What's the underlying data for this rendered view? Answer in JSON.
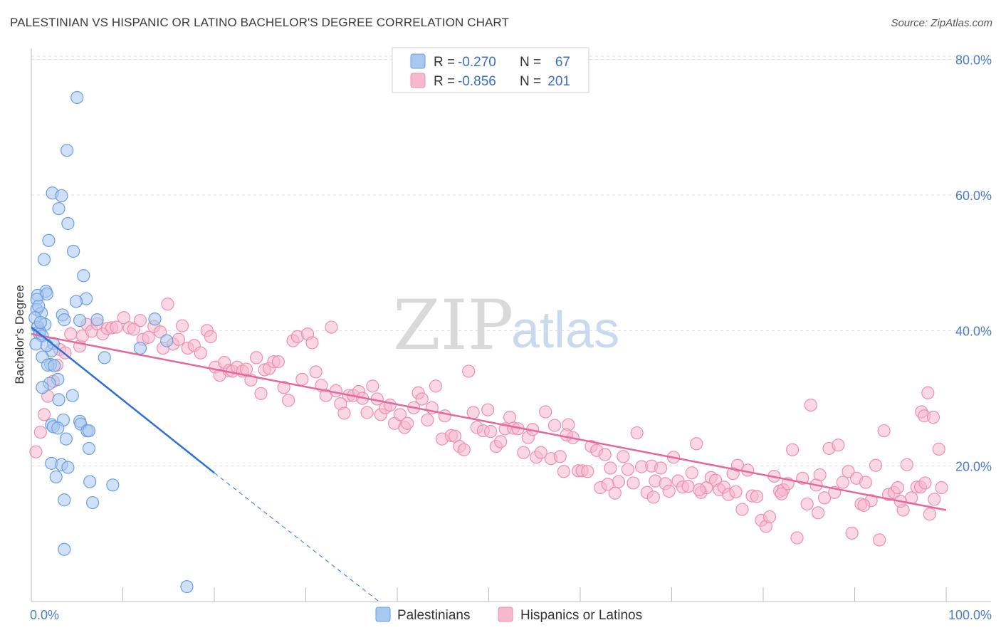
{
  "title": "PALESTINIAN VS HISPANIC OR LATINO BACHELOR'S DEGREE CORRELATION CHART",
  "source": "Source: ZipAtlas.com",
  "watermark": {
    "zip": "ZIP",
    "atlas": "atlas"
  },
  "colors": {
    "blue_fill": "#a9c8f0",
    "blue_stroke": "#6a9ee0",
    "blue_line": "#2d6fd6",
    "pink_fill": "#f5b8cc",
    "pink_stroke": "#ec8fae",
    "pink_line": "#e4689a",
    "grid": "#dddddd",
    "axis_label": "#4a7cc7"
  },
  "legend": {
    "rows": [
      {
        "r_label": "R =",
        "r_value": "-0.270",
        "n_label": "N =",
        "n_value": "67"
      },
      {
        "r_label": "R =",
        "r_value": "-0.856",
        "n_label": "N =",
        "n_value": "201"
      }
    ]
  },
  "bottom_legend": [
    "Palestinians",
    "Hispanics or Latinos"
  ],
  "chart_data": {
    "type": "scatter",
    "title": "PALESTINIAN VS HISPANIC OR LATINO BACHELOR'S DEGREE CORRELATION CHART",
    "xlabel": "",
    "ylabel": "Bachelor's Degree",
    "xlim": [
      0,
      100
    ],
    "ylim": [
      0,
      83
    ],
    "x_tick_labels": [
      "0.0%",
      "100.0%"
    ],
    "y_ticks": [
      20,
      40,
      60,
      80
    ],
    "y_tick_labels": [
      "20.0%",
      "40.0%",
      "60.0%",
      "80.0%"
    ],
    "grid": true,
    "legend_position": "top-center",
    "series": [
      {
        "name": "Palestinians",
        "r": -0.27,
        "n": 67,
        "trend": {
          "x0": 0,
          "y0": 40.5,
          "x1": 20,
          "y1": 19.0,
          "dash_to_x": 38,
          "dash_to_y": 0
        },
        "points": [
          [
            5.0,
            74.4
          ],
          [
            3.9,
            66.6
          ],
          [
            2.3,
            60.3
          ],
          [
            3.3,
            59.9
          ],
          [
            3.0,
            58.0
          ],
          [
            4.0,
            55.8
          ],
          [
            1.9,
            53.3
          ],
          [
            4.6,
            51.7
          ],
          [
            1.4,
            50.5
          ],
          [
            5.7,
            48.1
          ],
          [
            1.6,
            45.8
          ],
          [
            0.7,
            45.2
          ],
          [
            1.7,
            45.4
          ],
          [
            6.0,
            44.7
          ],
          [
            0.6,
            44.6
          ],
          [
            4.9,
            44.3
          ],
          [
            0.6,
            43.1
          ],
          [
            1.1,
            42.6
          ],
          [
            3.4,
            42.3
          ],
          [
            0.4,
            41.9
          ],
          [
            7.2,
            41.6
          ],
          [
            13.5,
            41.7
          ],
          [
            3.6,
            41.6
          ],
          [
            5.3,
            41.5
          ],
          [
            1.5,
            40.9
          ],
          [
            0.7,
            40.5
          ],
          [
            0.9,
            39.9
          ],
          [
            0.9,
            39.5
          ],
          [
            1.2,
            39.2
          ],
          [
            14.8,
            38.5
          ],
          [
            2.4,
            38.1
          ],
          [
            0.5,
            38.0
          ],
          [
            2.2,
            37.0
          ],
          [
            1.7,
            37.8
          ],
          [
            11.9,
            37.4
          ],
          [
            8.0,
            36.0
          ],
          [
            1.2,
            36.1
          ],
          [
            2.1,
            35.0
          ],
          [
            1.8,
            34.9
          ],
          [
            2.9,
            32.8
          ],
          [
            2.0,
            32.2
          ],
          [
            1.2,
            31.6
          ],
          [
            4.5,
            30.4
          ],
          [
            3.0,
            29.8
          ],
          [
            3.5,
            26.8
          ],
          [
            5.3,
            26.6
          ],
          [
            5.4,
            26.2
          ],
          [
            2.2,
            26.1
          ],
          [
            2.4,
            25.8
          ],
          [
            2.9,
            25.6
          ],
          [
            6.1,
            25.2
          ],
          [
            6.3,
            25.2
          ],
          [
            3.8,
            24.0
          ],
          [
            6.3,
            22.6
          ],
          [
            2.2,
            20.4
          ],
          [
            3.3,
            20.2
          ],
          [
            4.0,
            19.8
          ],
          [
            2.7,
            18.4
          ],
          [
            6.4,
            17.7
          ],
          [
            8.9,
            17.2
          ],
          [
            3.6,
            15.0
          ],
          [
            6.7,
            14.6
          ],
          [
            3.6,
            7.7
          ],
          [
            17.0,
            2.2
          ],
          [
            1.0,
            41.2
          ],
          [
            2.5,
            34.8
          ],
          [
            0.8,
            43.6
          ]
        ]
      },
      {
        "name": "Hispanics or Latinos",
        "r": -0.856,
        "n": 201,
        "trend": {
          "x0": 0,
          "y0": 39.5,
          "x1": 100,
          "y1": 13.5
        },
        "points": [
          [
            0.5,
            22.1
          ],
          [
            1.0,
            25.0
          ],
          [
            1.4,
            27.6
          ],
          [
            1.8,
            30.3
          ],
          [
            2.4,
            32.5
          ],
          [
            2.8,
            34.9
          ],
          [
            3.1,
            37.2
          ],
          [
            3.7,
            36.7
          ],
          [
            4.3,
            39.5
          ],
          [
            5.3,
            37.7
          ],
          [
            5.6,
            39.2
          ],
          [
            6.1,
            40.9
          ],
          [
            6.6,
            39.9
          ],
          [
            7.2,
            41.0
          ],
          [
            7.8,
            39.5
          ],
          [
            8.3,
            40.3
          ],
          [
            8.8,
            40.4
          ],
          [
            9.3,
            40.5
          ],
          [
            10.1,
            41.9
          ],
          [
            10.7,
            40.4
          ],
          [
            11.2,
            40.2
          ],
          [
            11.9,
            41.5
          ],
          [
            12.2,
            38.7
          ],
          [
            12.8,
            39.0
          ],
          [
            13.4,
            40.6
          ],
          [
            14.1,
            39.8
          ],
          [
            14.4,
            37.4
          ],
          [
            14.9,
            43.9
          ],
          [
            15.5,
            38.0
          ],
          [
            16.1,
            38.7
          ],
          [
            16.5,
            40.7
          ],
          [
            17.1,
            37.4
          ],
          [
            17.8,
            37.8
          ],
          [
            18.5,
            36.7
          ],
          [
            19.2,
            40.0
          ],
          [
            19.6,
            39.1
          ],
          [
            20.1,
            34.6
          ],
          [
            20.6,
            33.4
          ],
          [
            21.1,
            35.3
          ],
          [
            21.6,
            34.1
          ],
          [
            22.0,
            34.0
          ],
          [
            22.5,
            34.6
          ],
          [
            23.1,
            34.0
          ],
          [
            23.5,
            34.3
          ],
          [
            24.0,
            32.7
          ],
          [
            24.6,
            36.0
          ],
          [
            25.1,
            30.7
          ],
          [
            25.5,
            34.2
          ],
          [
            26.0,
            34.4
          ],
          [
            26.5,
            35.4
          ],
          [
            27.0,
            35.4
          ],
          [
            27.6,
            31.6
          ],
          [
            28.1,
            29.7
          ],
          [
            28.6,
            38.5
          ],
          [
            29.1,
            39.1
          ],
          [
            29.6,
            32.8
          ],
          [
            30.2,
            39.5
          ],
          [
            30.7,
            38.2
          ],
          [
            31.1,
            33.9
          ],
          [
            31.7,
            31.9
          ],
          [
            32.2,
            30.4
          ],
          [
            32.8,
            40.5
          ],
          [
            33.3,
            31.1
          ],
          [
            33.8,
            29.2
          ],
          [
            34.2,
            27.8
          ],
          [
            34.7,
            30.4
          ],
          [
            35.2,
            30.4
          ],
          [
            35.8,
            31.0
          ],
          [
            36.2,
            30.0
          ],
          [
            36.7,
            27.9
          ],
          [
            37.3,
            31.8
          ],
          [
            37.8,
            29.9
          ],
          [
            38.2,
            27.6
          ],
          [
            38.7,
            28.6
          ],
          [
            39.2,
            29.0
          ],
          [
            39.7,
            26.3
          ],
          [
            40.3,
            27.6
          ],
          [
            40.8,
            25.7
          ],
          [
            41.1,
            26.3
          ],
          [
            41.8,
            28.6
          ],
          [
            42.3,
            30.8
          ],
          [
            42.7,
            29.9
          ],
          [
            43.3,
            26.8
          ],
          [
            43.8,
            28.6
          ],
          [
            44.2,
            31.8
          ],
          [
            44.9,
            24.0
          ],
          [
            45.2,
            27.4
          ],
          [
            45.9,
            24.5
          ],
          [
            46.3,
            24.4
          ],
          [
            46.8,
            22.9
          ],
          [
            47.3,
            22.4
          ],
          [
            47.8,
            34.0
          ],
          [
            48.3,
            27.9
          ],
          [
            48.7,
            25.7
          ],
          [
            49.4,
            25.2
          ],
          [
            49.9,
            28.3
          ],
          [
            50.2,
            25.1
          ],
          [
            50.8,
            22.9
          ],
          [
            51.3,
            23.6
          ],
          [
            51.8,
            25.5
          ],
          [
            52.3,
            27.2
          ],
          [
            52.7,
            25.6
          ],
          [
            53.2,
            25.5
          ],
          [
            53.8,
            22.0
          ],
          [
            54.3,
            24.2
          ],
          [
            54.8,
            25.4
          ],
          [
            55.2,
            21.3
          ],
          [
            55.7,
            22.0
          ],
          [
            56.2,
            28.0
          ],
          [
            56.8,
            21.1
          ],
          [
            57.2,
            26.0
          ],
          [
            57.8,
            21.4
          ],
          [
            58.2,
            19.2
          ],
          [
            58.7,
            26.1
          ],
          [
            59.2,
            24.2
          ],
          [
            59.8,
            19.3
          ],
          [
            60.2,
            19.3
          ],
          [
            60.8,
            19.2
          ],
          [
            61.2,
            22.9
          ],
          [
            61.8,
            22.3
          ],
          [
            62.2,
            16.8
          ],
          [
            62.7,
            21.7
          ],
          [
            63.3,
            19.7
          ],
          [
            63.8,
            16.0
          ],
          [
            64.2,
            17.7
          ],
          [
            64.7,
            21.4
          ],
          [
            65.2,
            19.5
          ],
          [
            65.8,
            17.5
          ],
          [
            66.2,
            24.9
          ],
          [
            66.7,
            19.9
          ],
          [
            67.3,
            16.1
          ],
          [
            67.8,
            20.0
          ],
          [
            68.2,
            17.8
          ],
          [
            68.8,
            19.7
          ],
          [
            69.3,
            17.4
          ],
          [
            69.7,
            16.3
          ],
          [
            70.2,
            21.3
          ],
          [
            70.7,
            17.8
          ],
          [
            71.2,
            16.9
          ],
          [
            71.8,
            17.0
          ],
          [
            72.2,
            19.0
          ],
          [
            72.7,
            23.3
          ],
          [
            73.2,
            16.1
          ],
          [
            73.8,
            16.8
          ],
          [
            74.3,
            18.3
          ],
          [
            74.8,
            17.9
          ],
          [
            75.2,
            16.5
          ],
          [
            75.7,
            16.9
          ],
          [
            76.2,
            15.8
          ],
          [
            76.7,
            18.9
          ],
          [
            77.2,
            20.1
          ],
          [
            77.7,
            13.6
          ],
          [
            78.3,
            19.4
          ],
          [
            78.8,
            15.6
          ],
          [
            79.3,
            15.5
          ],
          [
            79.8,
            12.0
          ],
          [
            80.3,
            11.1
          ],
          [
            80.7,
            12.5
          ],
          [
            81.2,
            18.5
          ],
          [
            81.8,
            16.3
          ],
          [
            82.2,
            16.5
          ],
          [
            82.7,
            17.4
          ],
          [
            83.2,
            22.4
          ],
          [
            83.7,
            9.4
          ],
          [
            84.3,
            18.2
          ],
          [
            84.8,
            14.4
          ],
          [
            85.2,
            29.0
          ],
          [
            85.8,
            17.2
          ],
          [
            86.2,
            18.7
          ],
          [
            86.7,
            15.3
          ],
          [
            87.2,
            22.6
          ],
          [
            87.8,
            16.1
          ],
          [
            88.2,
            23.1
          ],
          [
            88.7,
            17.6
          ],
          [
            89.3,
            19.2
          ],
          [
            89.7,
            10.1
          ],
          [
            90.2,
            18.2
          ],
          [
            90.7,
            14.4
          ],
          [
            91.2,
            17.6
          ],
          [
            91.8,
            14.9
          ],
          [
            92.3,
            20.1
          ],
          [
            92.7,
            9.1
          ],
          [
            93.2,
            25.2
          ],
          [
            93.7,
            15.8
          ],
          [
            94.3,
            16.1
          ],
          [
            94.7,
            16.8
          ],
          [
            95.3,
            13.5
          ],
          [
            95.7,
            20.2
          ],
          [
            96.2,
            15.3
          ],
          [
            96.8,
            16.9
          ],
          [
            97.2,
            16.9
          ],
          [
            97.7,
            17.5
          ],
          [
            98.2,
            12.9
          ],
          [
            98.7,
            15.1
          ],
          [
            99.2,
            22.5
          ],
          [
            99.5,
            16.8
          ],
          [
            98.0,
            30.8
          ],
          [
            97.3,
            28.0
          ],
          [
            97.6,
            27.4
          ],
          [
            98.6,
            27.2
          ],
          [
            95.0,
            14.8
          ],
          [
            91.0,
            14.2
          ],
          [
            86.0,
            13.1
          ],
          [
            82.0,
            15.9
          ],
          [
            77.0,
            16.2
          ],
          [
            73.0,
            16.5
          ],
          [
            68.0,
            15.4
          ],
          [
            63.0,
            17.3
          ],
          [
            58.5,
            24.6
          ]
        ]
      }
    ]
  }
}
